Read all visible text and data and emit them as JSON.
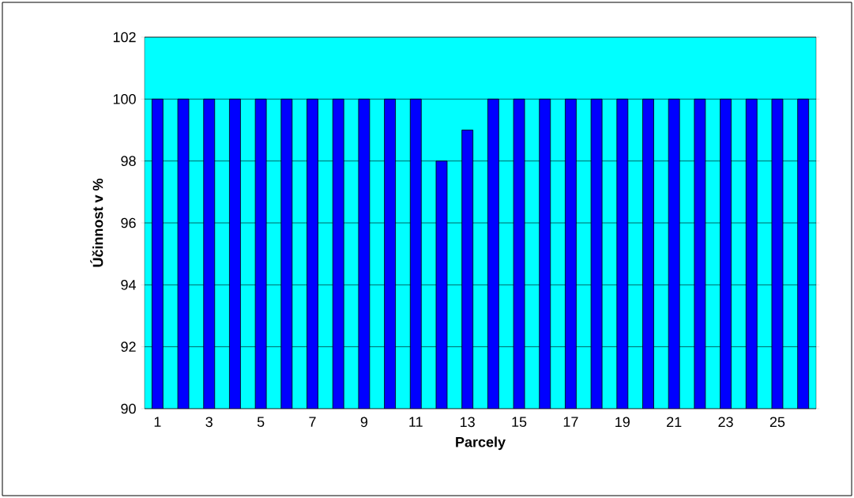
{
  "chart_data": {
    "type": "bar",
    "xlabel": "Parcely",
    "ylabel": "Účinnost v %",
    "categories": [
      "1",
      null,
      "3",
      null,
      "5",
      null,
      "7",
      null,
      "9",
      null,
      "11",
      null,
      "13",
      null,
      "15",
      null,
      "17",
      null,
      "19",
      null,
      "21",
      null,
      "23",
      null,
      "25",
      null
    ],
    "values": [
      100,
      100,
      100,
      100,
      100,
      100,
      100,
      100,
      100,
      100,
      100,
      98,
      99,
      100,
      100,
      100,
      100,
      100,
      100,
      100,
      100,
      100,
      100,
      100,
      100,
      100
    ],
    "color": "#0000ff",
    "ylim": [
      90,
      102
    ],
    "yticks": [
      90,
      92,
      94,
      96,
      98,
      100,
      102
    ],
    "grid": "y"
  }
}
